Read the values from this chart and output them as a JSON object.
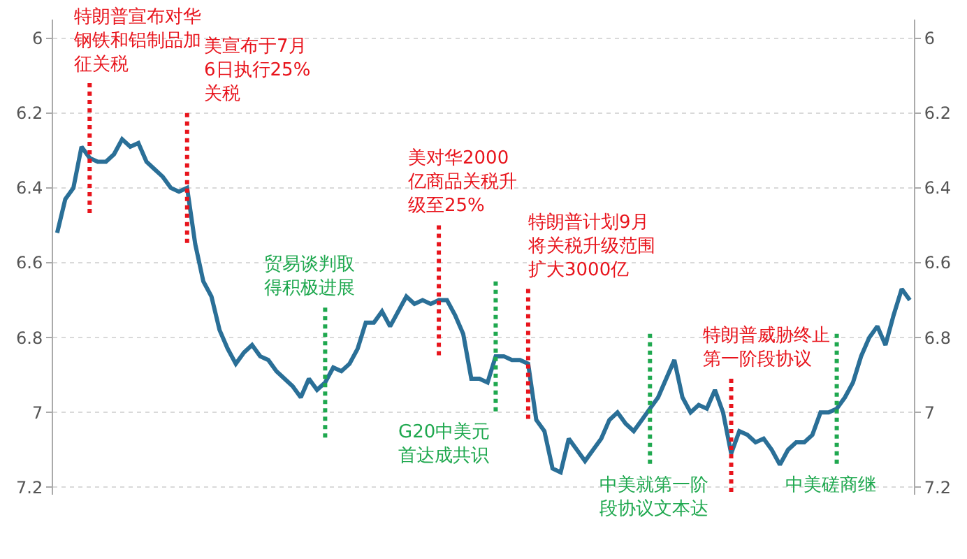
{
  "chart_data": {
    "type": "line",
    "categories": [
      null,
      null,
      null,
      null,
      null,
      null,
      null,
      null,
      null,
      null,
      null,
      null,
      null,
      null,
      null,
      null,
      null,
      null,
      null,
      null,
      null,
      null,
      null,
      null,
      null,
      null,
      null,
      null,
      null,
      null,
      null,
      null,
      null,
      null,
      null,
      null,
      null,
      null,
      null,
      null,
      null,
      null,
      null,
      null,
      null,
      null,
      null,
      null,
      null,
      null,
      null,
      null,
      null,
      null,
      null,
      null,
      null,
      null,
      null,
      null,
      null,
      null,
      null,
      null,
      null,
      null,
      null,
      null,
      null,
      null,
      null,
      null,
      null,
      null,
      null,
      null,
      null,
      null,
      null,
      null,
      null,
      null,
      null,
      null,
      null,
      null,
      null,
      null,
      null,
      null,
      null,
      null,
      null,
      null,
      null,
      null,
      null,
      null,
      null,
      null,
      null,
      null,
      null,
      null,
      null,
      null
    ],
    "series": [
      {
        "color": "#2a6f97",
        "values": [
          6.52,
          6.43,
          6.4,
          6.29,
          6.32,
          6.33,
          6.33,
          6.31,
          6.27,
          6.29,
          6.28,
          6.33,
          6.35,
          6.37,
          6.4,
          6.41,
          6.4,
          6.55,
          6.65,
          6.69,
          6.78,
          6.83,
          6.87,
          6.84,
          6.82,
          6.85,
          6.86,
          6.89,
          6.91,
          6.93,
          6.96,
          6.91,
          6.94,
          6.92,
          6.88,
          6.89,
          6.87,
          6.83,
          6.76,
          6.76,
          6.73,
          6.77,
          6.73,
          6.69,
          6.71,
          6.7,
          6.71,
          6.7,
          6.7,
          6.74,
          6.79,
          6.91,
          6.91,
          6.92,
          6.85,
          6.85,
          6.86,
          6.86,
          6.87,
          7.02,
          7.05,
          7.15,
          7.16,
          7.07,
          7.1,
          7.13,
          7.1,
          7.07,
          7.02,
          7.0,
          7.03,
          7.05,
          7.02,
          6.99,
          6.96,
          6.91,
          6.86,
          6.96,
          7.0,
          6.98,
          6.99,
          6.94,
          7.0,
          7.11,
          7.05,
          7.06,
          7.08,
          7.07,
          7.1,
          7.14,
          7.1,
          7.08,
          7.08,
          7.06,
          7.0,
          7.0,
          6.99,
          6.96,
          6.92,
          6.85,
          6.8,
          6.77,
          6.82,
          6.74,
          6.67,
          6.7
        ]
      }
    ],
    "ylim": [
      7.22,
      5.95
    ],
    "yticks": [
      6,
      6.2,
      6.4,
      6.6,
      6.8,
      7,
      7.2
    ],
    "y2lim": [
      7.22,
      5.95
    ],
    "y2ticks": [
      6,
      6.2,
      6.4,
      6.6,
      6.8,
      7,
      7.2
    ],
    "tick_labels": "y",
    "grid": "y",
    "marker": "none",
    "line_style": "solid",
    "annotations": [
      "特朗普宣布对华钢铁和铝制品加征关税",
      "美宣布于7月6日执行25%关税",
      "贸易谈判取得积极进展",
      "美对华2000亿商品关税升级至25%",
      "G20中美元首达成共识",
      "特朗普计划9月将关税升级范围扩大3000亿",
      "中美就第一阶段协议文本达",
      "特朗普威胁终止第一阶段协议",
      "中美磋商继"
    ]
  }
}
